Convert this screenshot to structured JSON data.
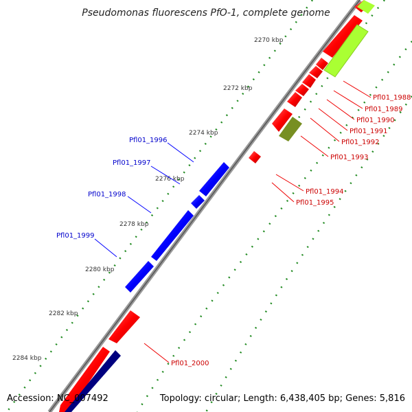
{
  "title": "Pseudomonas fluorescens PfO-1, complete genome",
  "footer": {
    "accession": "Accession: NC_007492",
    "summary": "Topology: circular; Length: 6,438,405 bp; Genes: 5,816"
  },
  "scale_ticks": [
    "2270 kbp",
    "2272 kbp",
    "2274 kbp",
    "2276 kbp",
    "2278 kbp",
    "2280 kbp",
    "2282 kbp",
    "2284 kbp"
  ],
  "gene_labels": {
    "forward": [
      "Pfl01_1988",
      "Pfl01_1989",
      "Pfl01_1990",
      "Pfl01_1991",
      "Pfl01_1992",
      "Pfl01_1993",
      "Pfl01_1994",
      "Pfl01_1995",
      "Pfl01_2000"
    ],
    "reverse": [
      "Pfl01_1996",
      "Pfl01_1997",
      "Pfl01_1998",
      "Pfl01_1999"
    ]
  },
  "colors": {
    "forward_gene": "#ff0000",
    "reverse_gene": "#0000ff",
    "backbone": "#888888",
    "scale_dots": "#228b22",
    "green_feature_light": "#aaff33",
    "green_feature_dark": "#778f22",
    "dark_blue_feature": "#00007f"
  }
}
